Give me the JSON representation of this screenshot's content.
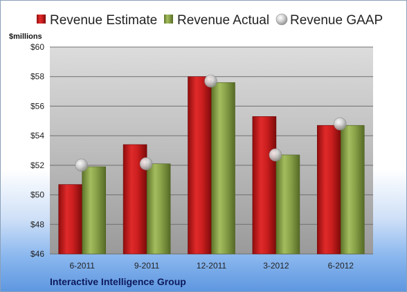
{
  "company": "Interactive Intelligence Group",
  "chart_data": {
    "type": "bar",
    "units_label": "$millions",
    "categories": [
      "6-2011",
      "9-2011",
      "12-2011",
      "3-2012",
      "6-2012"
    ],
    "series": [
      {
        "name": "Revenue Estimate",
        "kind": "bar",
        "color": "#cc1f1f",
        "values": [
          50.7,
          53.4,
          58.0,
          55.3,
          54.7
        ]
      },
      {
        "name": "Revenue Actual",
        "kind": "bar",
        "color": "#8aa34a",
        "values": [
          51.9,
          52.1,
          57.6,
          52.7,
          54.7
        ]
      },
      {
        "name": "Revenue GAAP",
        "kind": "marker",
        "color": "#c8c8c8",
        "values": [
          52.0,
          52.1,
          57.7,
          52.7,
          54.8
        ]
      }
    ],
    "ylim": [
      46,
      60
    ],
    "yticks": [
      46,
      48,
      50,
      52,
      54,
      56,
      58,
      60
    ],
    "ytick_labels": [
      "$46",
      "$48",
      "$50",
      "$52",
      "$54",
      "$56",
      "$58",
      "$60"
    ],
    "grid": true,
    "legend_position": "top"
  }
}
